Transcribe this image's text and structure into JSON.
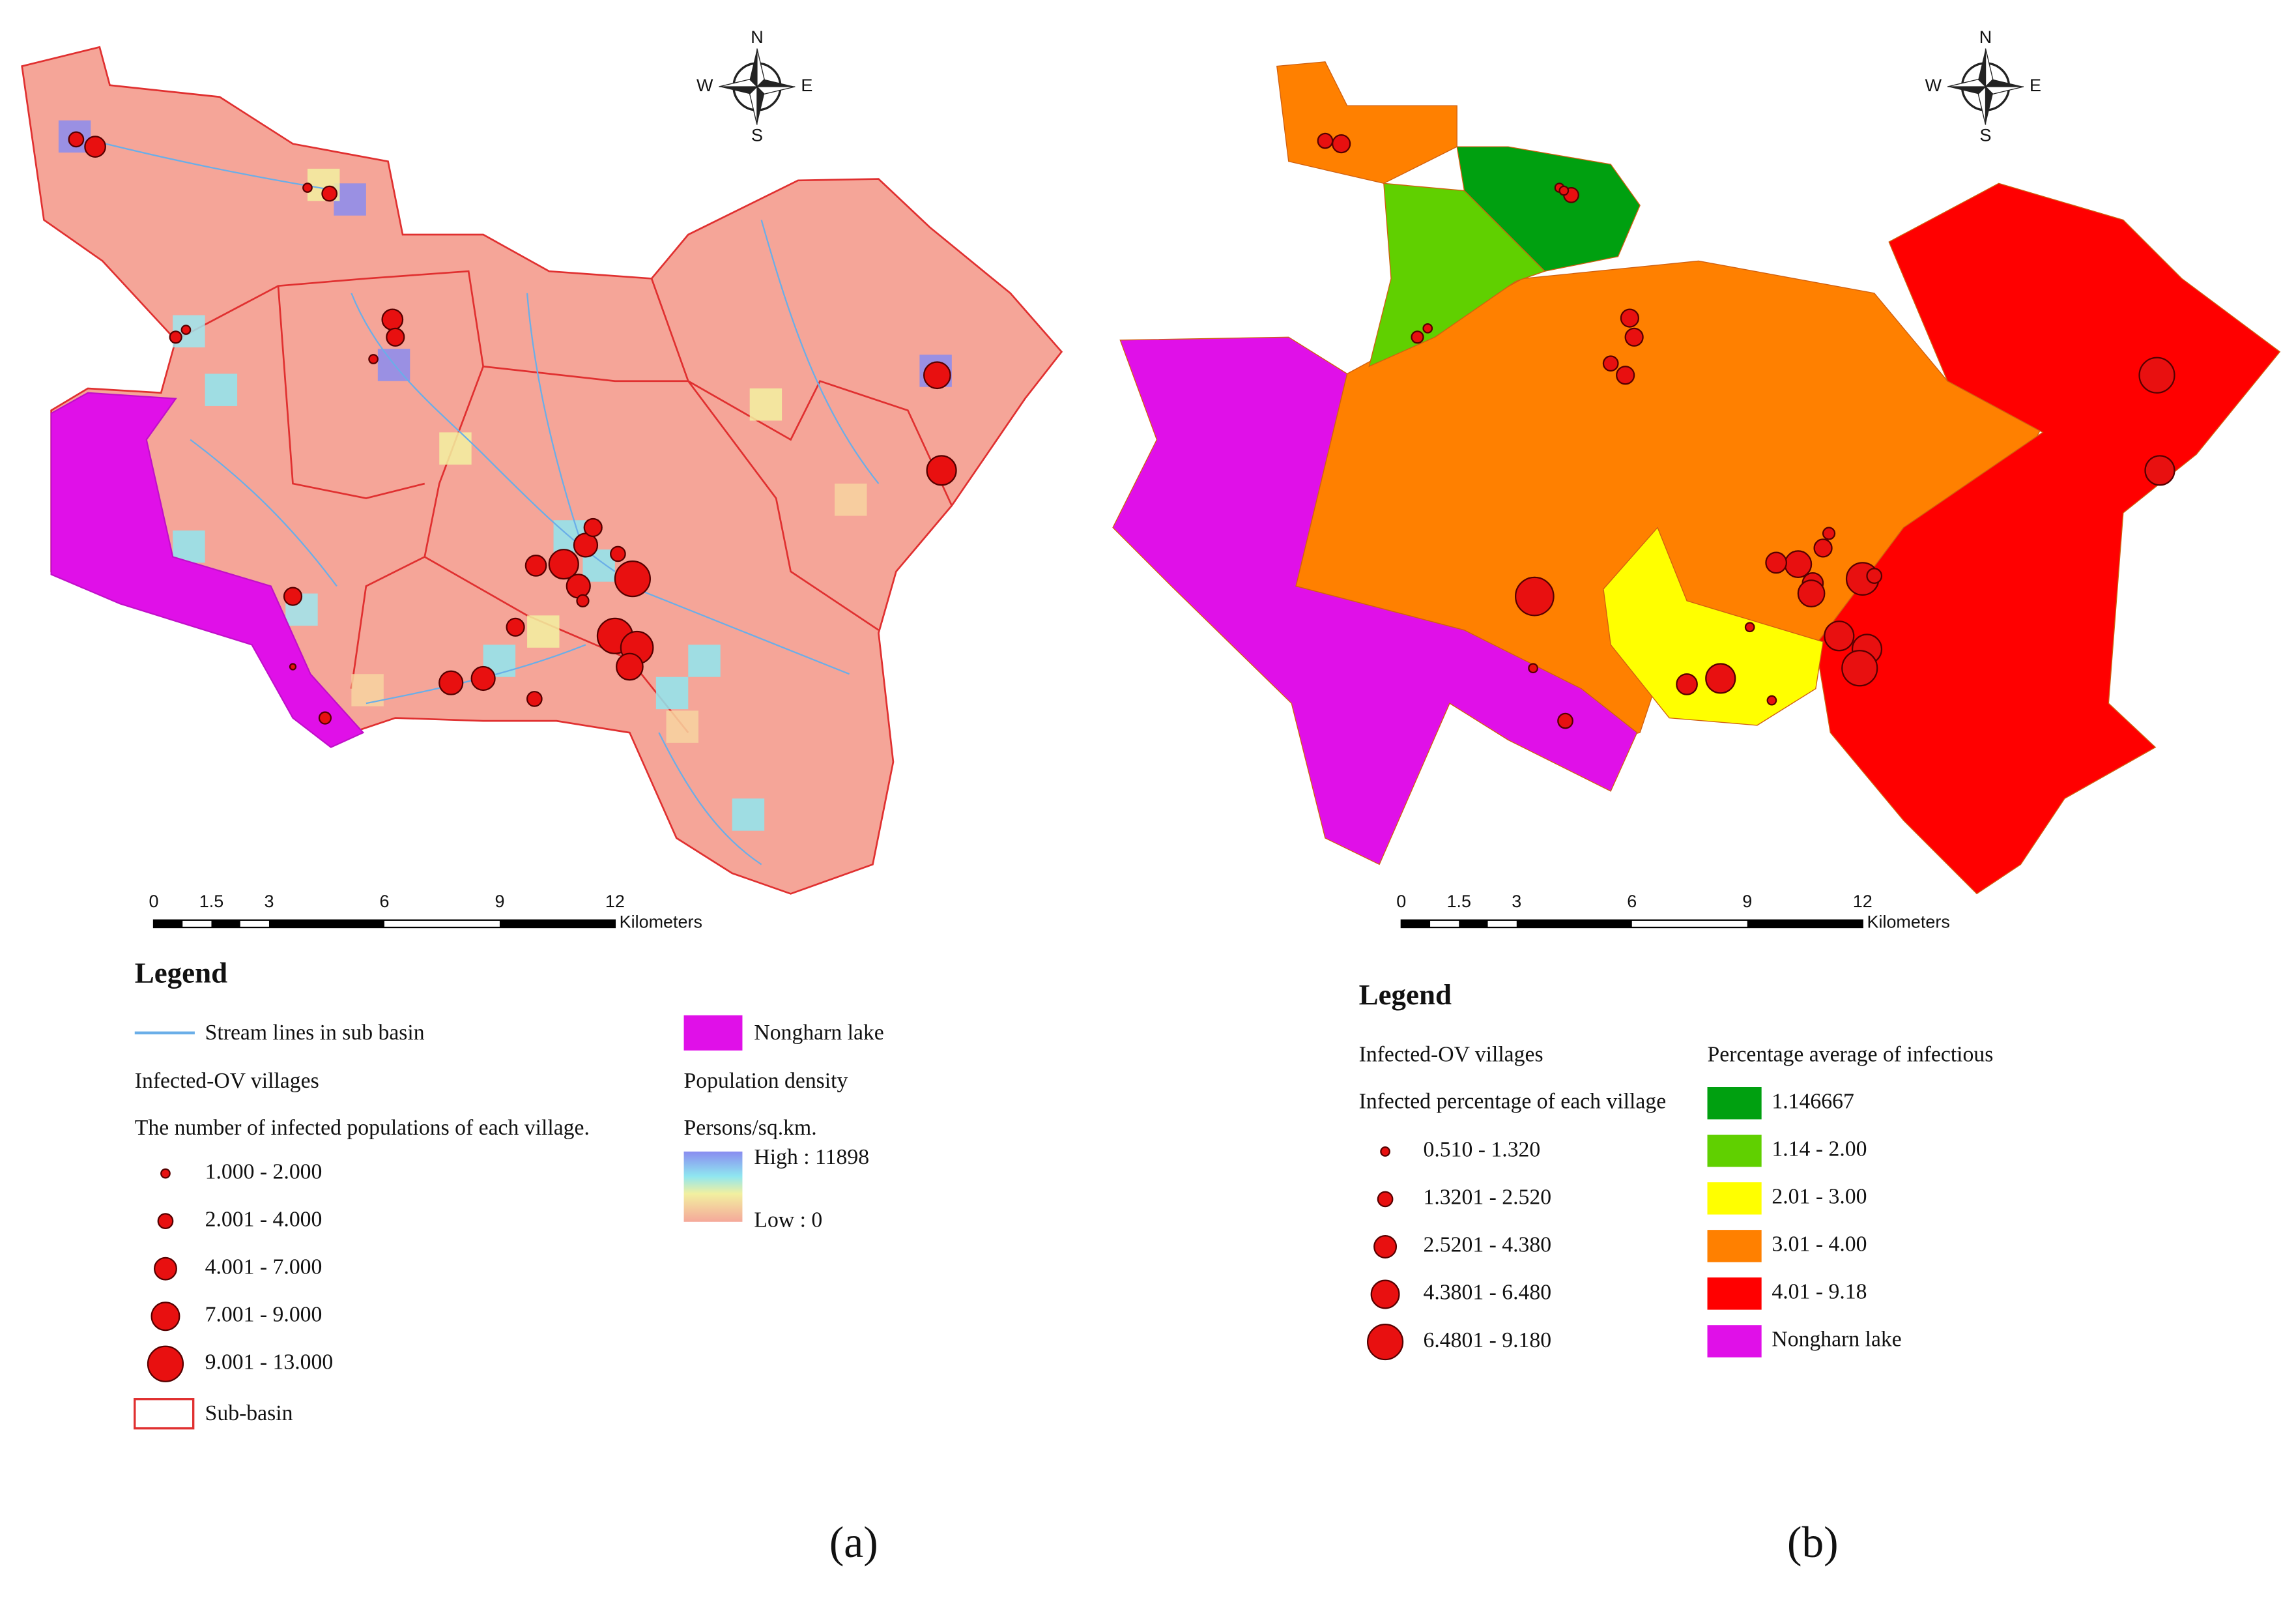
{
  "panels": [
    {
      "caption": "(a)",
      "compass": {
        "n": "N",
        "s": "S",
        "e": "E",
        "w": "W"
      },
      "scale": {
        "labels": [
          "0",
          "1.5",
          "3",
          "6",
          "9",
          "12"
        ],
        "unit": "Kilometers"
      },
      "legend": {
        "title": "Legend",
        "stream": "Stream lines in sub basin",
        "villages_title": "Infected-OV villages",
        "villages_subtitle": "The number of infected populations of each village.",
        "village_classes": [
          "1.000 - 2.000",
          "2.001 - 4.000",
          "4.001 - 7.000",
          "7.001 - 9.000",
          "9.001 - 13.000"
        ],
        "subbasin": "Sub-basin",
        "lake": "Nongharn lake",
        "density_title": "Population density",
        "density_unit": "Persons/sq.km.",
        "density_high": "High : 11898",
        "density_low": "Low : 0"
      }
    },
    {
      "caption": "(b)",
      "compass": {
        "n": "N",
        "s": "S",
        "e": "E",
        "w": "W"
      },
      "scale": {
        "labels": [
          "0",
          "1.5",
          "3",
          "6",
          "9",
          "12"
        ],
        "unit": "Kilometers"
      },
      "legend": {
        "title": "Legend",
        "villages_title": "Infected-OV villages",
        "villages_subtitle": "Infected percentage of each village",
        "village_classes": [
          "0.510 - 1.320",
          "1.3201 - 2.520",
          "2.5201 - 4.380",
          "4.3801 - 6.480",
          "6.4801 - 9.180"
        ],
        "percentage_title": "Percentage average  of infectious",
        "percentage_classes": [
          "1.146667",
          "1.14 - 2.00",
          "2.01 - 3.00",
          "3.01 - 4.00",
          "4.01 - 9.18",
          "Nongharn lake"
        ]
      }
    }
  ]
}
